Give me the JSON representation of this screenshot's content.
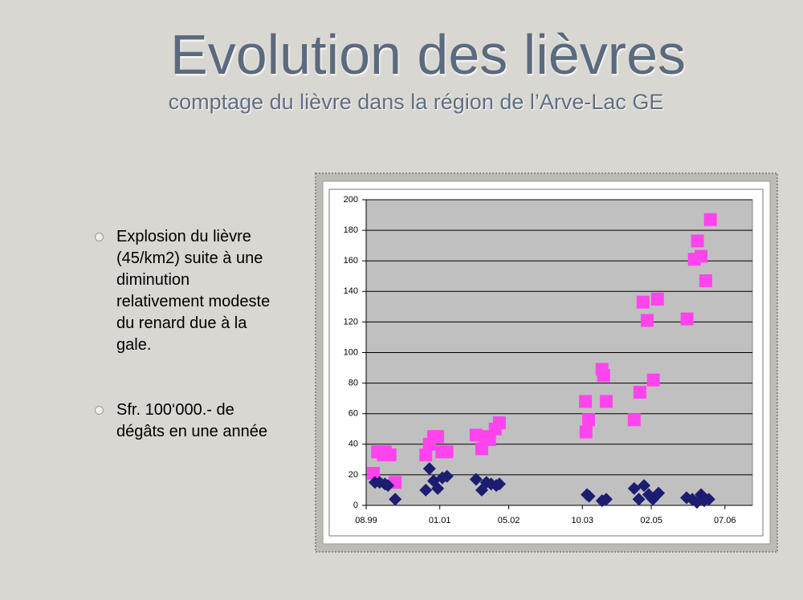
{
  "slide": {
    "title": "Evolution des lièvres",
    "subtitle": "comptage du lièvre dans la région de l’Arve-Lac GE",
    "bullets": [
      "Explosion du lièvre (45/km2) suite à une diminution relativement modeste du renard due à la gale.",
      "Sfr. 100‘000.- de dégâts en une année"
    ]
  },
  "chart_data": {
    "type": "scatter",
    "xlim": [
      1999.58,
      2007.03
    ],
    "xticks": [
      {
        "value": 1999.58,
        "label": "08.99"
      },
      {
        "value": 2001.0,
        "label": "01.01"
      },
      {
        "value": 2002.33,
        "label": "05.02"
      },
      {
        "value": 2003.75,
        "label": "10.03"
      },
      {
        "value": 2005.08,
        "label": "02.05"
      },
      {
        "value": 2006.5,
        "label": "07.06"
      }
    ],
    "ylim": [
      0,
      200
    ],
    "yticks": [
      0,
      20,
      40,
      60,
      80,
      100,
      120,
      140,
      160,
      180,
      200
    ],
    "grid": true,
    "series": [
      {
        "color": "#ff44ee",
        "marker": "square",
        "x": [
          1999.72,
          1999.8,
          1999.91,
          1999.95,
          2000.04,
          2000.14,
          2000.73,
          2000.8,
          2000.88,
          2000.96,
          2001.04,
          2001.14,
          2001.7,
          2001.81,
          2001.89,
          2001.96,
          2002.07,
          2002.15,
          2003.81,
          2003.82,
          2003.87,
          2004.13,
          2004.16,
          2004.21,
          2004.75,
          2004.86,
          2004.92,
          2005.0,
          2005.12,
          2005.2,
          2005.77,
          2005.91,
          2005.97,
          2006.04,
          2006.13,
          2006.22
        ],
        "values": [
          21,
          35,
          33,
          35,
          33,
          15,
          33,
          40,
          45,
          45,
          35,
          35,
          46,
          37,
          45,
          43,
          50,
          54,
          68,
          48,
          56,
          89,
          85,
          68,
          56,
          74,
          133,
          121,
          82,
          135,
          122,
          161,
          173,
          163,
          147,
          187
        ]
      },
      {
        "color": "#1c1c70",
        "marker": "diamond",
        "x": [
          1999.75,
          1999.84,
          1999.94,
          2000.0,
          2000.14,
          2000.73,
          2000.8,
          2000.88,
          2000.96,
          2001.05,
          2001.14,
          2001.7,
          2001.81,
          2001.9,
          2001.99,
          2002.09,
          2002.15,
          2003.84,
          2003.88,
          2004.13,
          2004.21,
          2004.75,
          2004.84,
          2004.94,
          2005.03,
          2005.11,
          2005.22,
          2005.76,
          2005.87,
          2005.96,
          2006.04,
          2006.1,
          2006.19
        ],
        "values": [
          15,
          15,
          14,
          13,
          4,
          10,
          24,
          16,
          11,
          18,
          19,
          17,
          10,
          15,
          14,
          13,
          14,
          7,
          6,
          3,
          4,
          11,
          4,
          13,
          7,
          4,
          8,
          5,
          4,
          2,
          7,
          3,
          4
        ]
      }
    ]
  }
}
